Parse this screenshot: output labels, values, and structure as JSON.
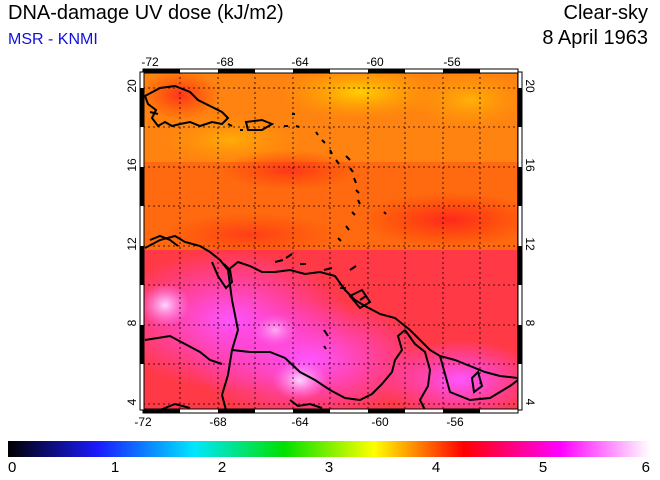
{
  "header": {
    "title": "DNA-damage UV dose (kJ/m2)",
    "subtitle": "MSR - KNMI",
    "condition": "Clear-sky",
    "date": "8 April 1963"
  },
  "map": {
    "lon_range": [
      -73,
      -53
    ],
    "lat_range": [
      3.5,
      20.5
    ],
    "lon_ticks": [
      "-72",
      "-68",
      "-64",
      "-60",
      "-56"
    ],
    "lat_ticks": [
      "20",
      "16",
      "12",
      "8",
      "4"
    ],
    "grid": "dotted",
    "region": "Caribbean and northern South America"
  },
  "colorbar": {
    "labels": [
      "0",
      "1",
      "2",
      "3",
      "4",
      "5",
      "6"
    ],
    "colors": [
      "#000000",
      "#1a1aff",
      "#00e6ff",
      "#00e000",
      "#ffff00",
      "#ff0000",
      "#ff00ff",
      "#ffffff"
    ]
  }
}
